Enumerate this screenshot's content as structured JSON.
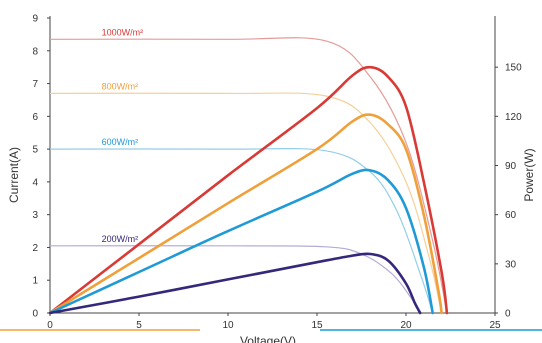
{
  "chart_data": {
    "type": "line",
    "xlabel": "Voltage(V)",
    "ylabel_left": "Current(A)",
    "ylabel_right": "Power(W)",
    "xlim": [
      0,
      25
    ],
    "ylim_left": [
      0,
      9
    ],
    "ylim_right": [
      0,
      180
    ],
    "x_ticks": [
      "0",
      "5",
      "10",
      "15",
      "20",
      "25"
    ],
    "y_left_ticks": [
      "0",
      "1",
      "2",
      "3",
      "4",
      "5",
      "6",
      "7",
      "8",
      "9"
    ],
    "y_right_ticks": [
      "0",
      "30",
      "60",
      "90",
      "120",
      "150"
    ],
    "grid": false,
    "series": [
      {
        "name": "1000W/m²",
        "color": "#d83a36",
        "iv_color": "#e59b98",
        "isc": 8.35,
        "voc": 22.3,
        "knee": 15.5,
        "iv_points": [
          [
            0,
            8.35
          ],
          [
            10,
            8.35
          ],
          [
            15.5,
            8.3
          ],
          [
            18,
            7.2
          ],
          [
            20,
            5.2
          ],
          [
            21.5,
            2.2
          ],
          [
            22.3,
            0
          ]
        ],
        "power_points": [
          [
            0,
            0
          ],
          [
            5,
            42
          ],
          [
            10,
            84
          ],
          [
            15,
            125
          ],
          [
            17,
            145
          ],
          [
            18,
            150
          ],
          [
            19,
            144
          ],
          [
            20,
            126
          ],
          [
            21,
            80
          ],
          [
            22,
            25
          ],
          [
            22.3,
            0
          ]
        ]
      },
      {
        "name": "800W/m²",
        "color": "#f0a03a",
        "iv_color": "#f6cf99",
        "isc": 6.7,
        "voc": 22.0,
        "knee": 15.5,
        "iv_points": [
          [
            0,
            6.7
          ],
          [
            10,
            6.7
          ],
          [
            15.5,
            6.62
          ],
          [
            18,
            5.8
          ],
          [
            20,
            4.0
          ],
          [
            21.3,
            1.7
          ],
          [
            22.0,
            0
          ]
        ],
        "power_points": [
          [
            0,
            0
          ],
          [
            5,
            33.5
          ],
          [
            10,
            67
          ],
          [
            15,
            100
          ],
          [
            17,
            117
          ],
          [
            18,
            121
          ],
          [
            19,
            115
          ],
          [
            20,
            100
          ],
          [
            21,
            60
          ],
          [
            21.8,
            15
          ],
          [
            22.0,
            0
          ]
        ]
      },
      {
        "name": "600W/m²",
        "color": "#1f9ad6",
        "iv_color": "#93cdea",
        "isc": 5.0,
        "voc": 21.5,
        "knee": 15.5,
        "iv_points": [
          [
            0,
            5.0
          ],
          [
            10,
            5.0
          ],
          [
            15.5,
            4.95
          ],
          [
            18,
            4.3
          ],
          [
            19.5,
            3.1
          ],
          [
            20.8,
            1.2
          ],
          [
            21.5,
            0
          ]
        ],
        "power_points": [
          [
            0,
            0
          ],
          [
            5,
            25
          ],
          [
            10,
            50
          ],
          [
            15,
            74
          ],
          [
            17,
            85
          ],
          [
            18,
            87
          ],
          [
            19,
            81
          ],
          [
            20,
            64
          ],
          [
            21,
            28
          ],
          [
            21.5,
            0
          ]
        ]
      },
      {
        "name": "200W/m²",
        "color": "#33287a",
        "iv_color": "#b3add6",
        "isc": 2.05,
        "voc": 20.8,
        "knee": 15.5,
        "iv_points": [
          [
            0,
            2.05
          ],
          [
            10,
            2.05
          ],
          [
            15.5,
            2.02
          ],
          [
            17.5,
            1.8
          ],
          [
            19.2,
            1.2
          ],
          [
            20.3,
            0.45
          ],
          [
            20.8,
            0
          ]
        ],
        "power_points": [
          [
            0,
            0
          ],
          [
            5,
            10
          ],
          [
            10,
            20.5
          ],
          [
            15,
            31
          ],
          [
            17,
            35
          ],
          [
            18,
            36
          ],
          [
            19,
            32
          ],
          [
            20,
            18
          ],
          [
            20.5,
            6
          ],
          [
            20.8,
            0
          ]
        ]
      }
    ]
  }
}
